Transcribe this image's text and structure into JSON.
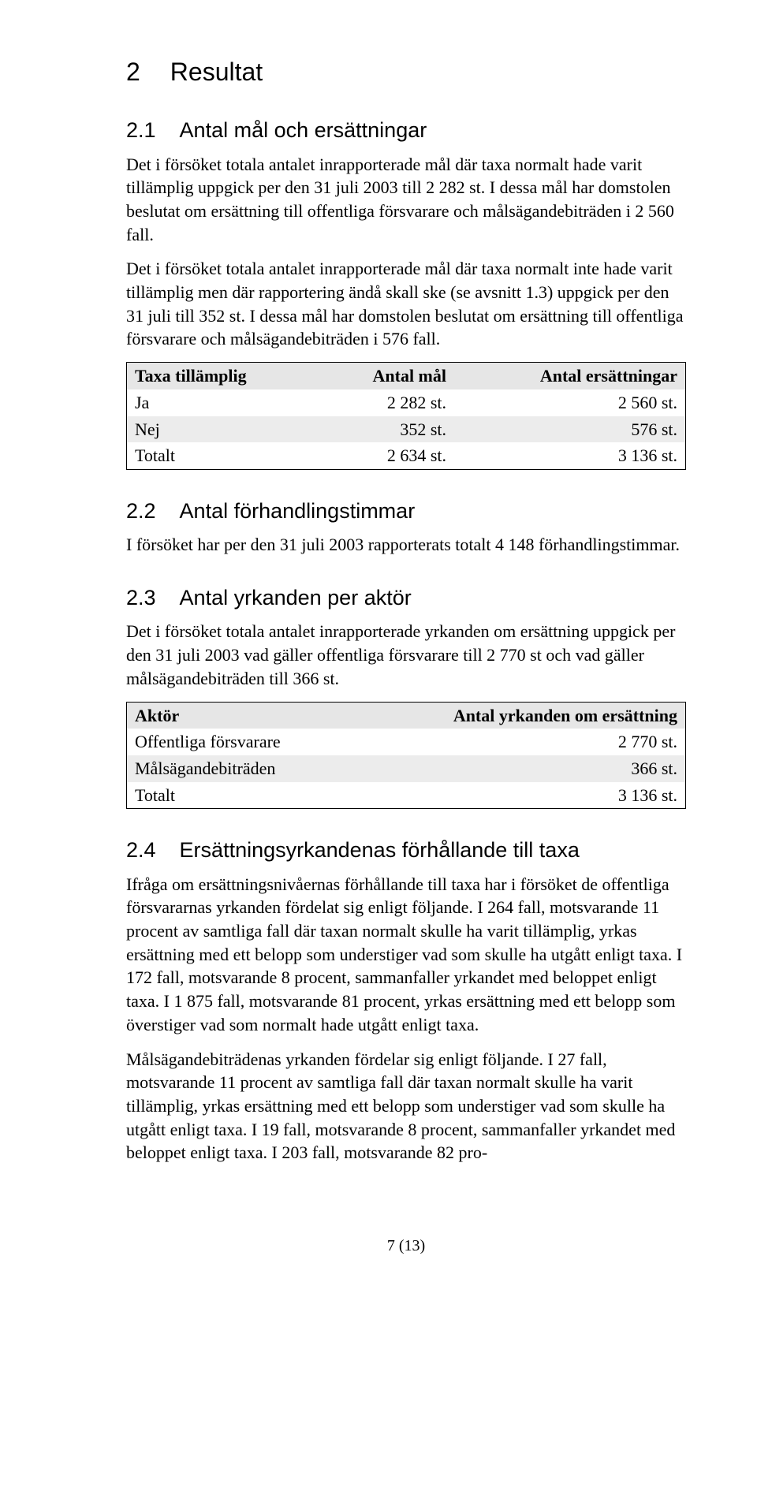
{
  "h1": {
    "num": "2",
    "title": "Resultat"
  },
  "s21": {
    "num": "2.1",
    "title": "Antal mål och ersättningar",
    "p1": "Det i försöket totala antalet inrapporterade mål där taxa normalt hade varit tillämplig uppgick per den 31 juli 2003 till 2 282 st. I dessa mål har domstolen beslutat om ersättning till offentliga försvarare och målsägandebiträden i 2 560 fall.",
    "p2": "Det i försöket totala antalet inrapporterade mål där taxa normalt inte hade varit tillämplig men där rapportering ändå skall ske (se avsnitt 1.3) uppgick per den 31 juli till 352 st. I dessa mål har domstolen beslutat om ersättning till offentliga försvarare och målsägandebiträden i 576 fall.",
    "table": {
      "columns": [
        "Taxa tillämplig",
        "Antal mål",
        "Antal ersättningar"
      ],
      "rows": [
        [
          "Ja",
          "2 282 st.",
          "2 560 st."
        ],
        [
          "Nej",
          "352 st.",
          "576 st."
        ],
        [
          "Totalt",
          "2 634 st.",
          "3 136 st."
        ]
      ],
      "shaded_rows": [
        1
      ]
    }
  },
  "s22": {
    "num": "2.2",
    "title": "Antal förhandlingstimmar",
    "p1": "I försöket har per den 31 juli 2003 rapporterats totalt 4 148 förhandlingstimmar."
  },
  "s23": {
    "num": "2.3",
    "title": "Antal yrkanden per aktör",
    "p1": "Det i försöket totala antalet inrapporterade yrkanden om ersättning uppgick per den 31 juli 2003 vad gäller offentliga försvarare till 2 770 st och vad gäller målsägandebiträden till 366 st.",
    "table": {
      "columns": [
        "Aktör",
        "Antal yrkanden om ersättning"
      ],
      "rows": [
        [
          "Offentliga försvarare",
          "2 770 st."
        ],
        [
          "Målsägandebiträden",
          "366 st."
        ],
        [
          "Totalt",
          "3 136 st."
        ]
      ],
      "shaded_rows": [
        1
      ]
    }
  },
  "s24": {
    "num": "2.4",
    "title": "Ersättningsyrkandenas förhållande till taxa",
    "p1": "Ifråga om ersättningsnivåernas förhållande till taxa har i försöket de offentliga försvararnas yrkanden fördelat sig enligt följande. I 264 fall, motsvarande 11 procent av samtliga fall där taxan normalt skulle ha varit tillämplig, yrkas ersättning med ett belopp som understiger vad som skulle ha utgått enligt taxa. I 172 fall, motsvarande 8 procent, sammanfaller yrkandet med beloppet enligt taxa. I 1 875 fall, motsvarande 81 procent, yrkas ersättning med ett belopp som överstiger vad som normalt hade utgått enligt taxa.",
    "p2": "Målsägandebiträdenas yrkanden fördelar sig enligt följande. I 27 fall, motsvarande 11 procent av samtliga fall där taxan normalt skulle ha varit tillämplig, yrkas ersättning med ett belopp som understiger vad som skulle ha utgått enligt taxa. I 19 fall, motsvarande 8 procent, sammanfaller yrkandet med beloppet enligt taxa. I 203 fall, motsvarande 82 pro-"
  },
  "page_number": "7 (13)"
}
